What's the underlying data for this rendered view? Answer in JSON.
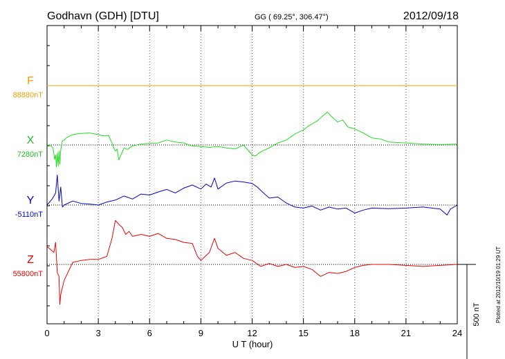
{
  "header": {
    "station": "Godhavn (GDH)  [DTU]",
    "coords": "GG ( 69.25°, 306.47°)",
    "date": "2012/09/18"
  },
  "plotted": "Plotted at 2012/10/19 01:29 UT",
  "chart_data": {
    "type": "line",
    "xlabel": "U T (hour)",
    "xlim": [
      0,
      24
    ],
    "xticks": [
      0,
      3,
      6,
      9,
      12,
      15,
      18,
      21,
      24
    ],
    "scale_bar": {
      "label": "500 nT",
      "value_nT": 500
    },
    "series": [
      {
        "name": "F",
        "baseline_label": "88880nT",
        "baseline_nT": 88880,
        "color": "#f0a000",
        "label_color": "#f0a000",
        "baseline_color": "#f0a000",
        "x": [
          0,
          24
        ],
        "dev_nT": [
          0,
          0
        ]
      },
      {
        "name": "X",
        "baseline_label": "7280nT",
        "baseline_nT": 7280,
        "color": "#22dd22",
        "label_color": "#22bb22",
        "baseline_color": "#000000",
        "x": [
          0,
          0.2,
          0.35,
          0.45,
          0.5,
          0.55,
          0.6,
          0.65,
          0.7,
          0.75,
          0.8,
          0.9,
          1.0,
          1.2,
          1.5,
          2,
          2.5,
          3,
          3.3,
          3.6,
          3.8,
          3.9,
          4.0,
          4.1,
          4.2,
          4.3,
          4.4,
          4.5,
          4.7,
          5,
          5.5,
          6,
          6.5,
          7,
          7.5,
          8,
          8.5,
          9,
          9.5,
          10,
          10.5,
          11,
          11.5,
          12,
          12.2,
          12.4,
          12.6,
          13,
          13.5,
          14,
          14.5,
          15,
          15.3,
          15.6,
          15.8,
          16,
          16.2,
          16.4,
          16.6,
          16.8,
          17,
          17.3,
          17.6,
          18,
          18.5,
          19,
          19.5,
          20,
          21,
          22,
          23,
          24
        ],
        "dev_nT": [
          0,
          -2,
          -15,
          -72,
          -50,
          -110,
          -40,
          -105,
          -30,
          -95,
          -25,
          20,
          25,
          40,
          52,
          58,
          60,
          52,
          45,
          48,
          10,
          -15,
          -30,
          -20,
          -75,
          -55,
          -35,
          -15,
          -22,
          -5,
          5,
          8,
          10,
          25,
          15,
          10,
          -5,
          -8,
          -12,
          -8,
          -15,
          -20,
          0,
          -50,
          -55,
          -40,
          -30,
          -15,
          10,
          25,
          55,
          75,
          95,
          110,
          120,
          135,
          150,
          165,
          145,
          130,
          115,
          125,
          90,
          80,
          60,
          35,
          30,
          15,
          10,
          5,
          2,
          5
        ]
      },
      {
        "name": "Y",
        "baseline_label": "-5110nT",
        "baseline_nT": -5110,
        "color": "#0000cc",
        "label_color": "#0000cc",
        "baseline_color": "#000000",
        "x": [
          0,
          0.3,
          0.5,
          0.6,
          0.7,
          0.8,
          0.9,
          1,
          1.5,
          2,
          2.5,
          3,
          3.5,
          4,
          4.5,
          5,
          5.5,
          6,
          6.5,
          7,
          7.5,
          8,
          8.5,
          9,
          9.3,
          9.6,
          9.8,
          10,
          10.5,
          11,
          11.5,
          12,
          12.3,
          12.6,
          13,
          13.5,
          14,
          14.5,
          15,
          15.5,
          16,
          16.5,
          17,
          17.5,
          18,
          18.5,
          19,
          20,
          21,
          22,
          23,
          23.4,
          23.6,
          24
        ],
        "dev_nT": [
          0,
          30,
          60,
          150,
          20,
          90,
          -10,
          0,
          20,
          8,
          5,
          0,
          15,
          25,
          45,
          30,
          55,
          50,
          65,
          78,
          60,
          85,
          100,
          80,
          105,
          90,
          135,
          80,
          110,
          120,
          115,
          108,
          90,
          65,
          35,
          40,
          10,
          -10,
          -15,
          -5,
          -25,
          -10,
          -20,
          -15,
          -40,
          -25,
          -15,
          -18,
          -15,
          -10,
          -20,
          -50,
          -20,
          0
        ]
      },
      {
        "name": "Z",
        "baseline_label": "55800nT",
        "baseline_nT": 55800,
        "color": "#ee0000",
        "label_color": "#ee0000",
        "baseline_color": "#000000",
        "x": [
          0,
          0.2,
          0.4,
          0.5,
          0.6,
          0.7,
          0.75,
          0.8,
          1,
          1.5,
          2,
          2.5,
          3,
          3.5,
          3.8,
          4.0,
          4.2,
          4.4,
          4.6,
          4.8,
          5,
          5.5,
          6,
          6.5,
          7,
          7.5,
          8,
          8.5,
          8.8,
          9,
          9.5,
          9.8,
          10,
          10.5,
          11,
          11.5,
          12,
          12.5,
          13,
          13.5,
          14,
          14.5,
          15,
          15.5,
          16,
          16.5,
          17,
          17.5,
          18,
          18.5,
          19,
          20,
          21,
          22,
          23,
          24
        ],
        "dev_nT": [
          90,
          75,
          60,
          110,
          -40,
          -60,
          -200,
          -150,
          -80,
          10,
          20,
          25,
          25,
          40,
          130,
          220,
          200,
          185,
          150,
          165,
          140,
          150,
          140,
          155,
          130,
          125,
          110,
          105,
          40,
          20,
          60,
          130,
          80,
          45,
          60,
          30,
          20,
          -10,
          5,
          -10,
          0,
          -15,
          -10,
          -25,
          -60,
          -40,
          -45,
          -35,
          -15,
          -5,
          0,
          0,
          -5,
          -10,
          -5,
          0
        ]
      }
    ]
  }
}
